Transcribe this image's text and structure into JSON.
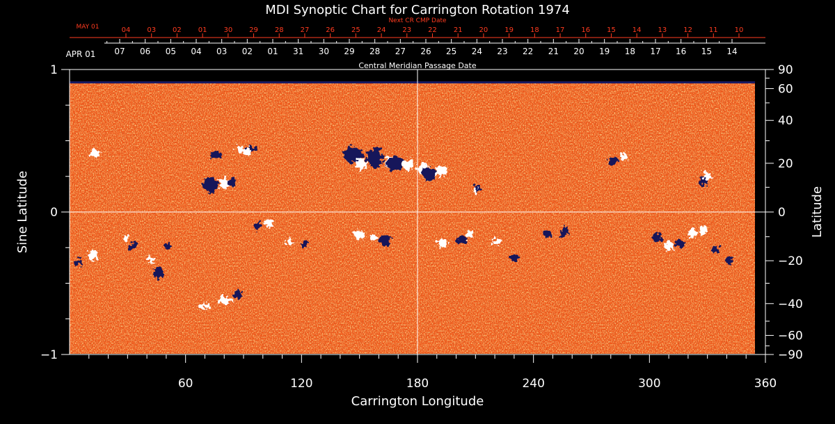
{
  "chart_data": {
    "type": "heatmap",
    "title": "MDI Synoptic Chart for Carrington Rotation 1974",
    "xlabel": "Carrington Longitude",
    "ylabel_left": "Sine Latitude",
    "ylabel_right": "Latitude",
    "xlim": [
      0,
      360
    ],
    "ylim": [
      -1,
      1
    ],
    "x_ticks": [
      "60",
      "120",
      "180",
      "240",
      "300",
      "360"
    ],
    "x_tick_values": [
      60,
      120,
      180,
      240,
      300,
      360
    ],
    "y_ticks_left": [
      "1",
      "0",
      "−1"
    ],
    "y_tick_values_left": [
      1,
      0,
      -1
    ],
    "y_ticks_right": [
      "90",
      "60",
      "40",
      "20",
      "0",
      "−20",
      "−40",
      "−60",
      "−90"
    ],
    "y_tick_values_right": [
      90,
      60,
      40,
      20,
      0,
      -20,
      -40,
      -60,
      -90
    ],
    "top_axis": {
      "label": "Central Meridian Passage Date",
      "start_label": "APR 01",
      "dates": [
        "07",
        "06",
        "05",
        "04",
        "03",
        "02",
        "01",
        "31",
        "30",
        "29",
        "28",
        "27",
        "26",
        "25",
        "24",
        "23",
        "22",
        "21",
        "20",
        "19",
        "18",
        "17",
        "16",
        "15",
        "14"
      ]
    },
    "next_axis": {
      "label": "Next CR CMP Date",
      "start_label": "MAY 01",
      "dates": [
        "04",
        "03",
        "02",
        "01",
        "30",
        "29",
        "28",
        "27",
        "26",
        "25",
        "24",
        "23",
        "22",
        "21",
        "20",
        "19",
        "18",
        "17",
        "16",
        "15",
        "14",
        "13",
        "12",
        "11",
        "10"
      ]
    },
    "grid": "crosshair at longitude 180 and sine latitude 0",
    "colors": {
      "background_field": "#f0581a",
      "positive_polarity": "#ffffff",
      "negative_polarity": "#14145a",
      "next_axis": "#ff3b1f",
      "axes": "#ffffff"
    }
  }
}
